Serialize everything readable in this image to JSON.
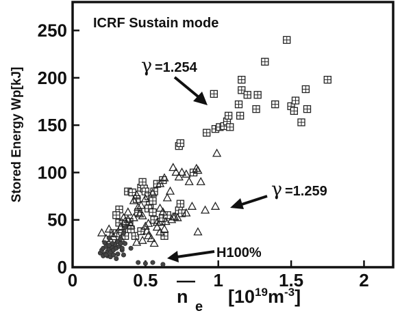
{
  "chart_data": {
    "type": "scatter",
    "title": "ICRF Sustain mode",
    "xlabel_main": "n",
    "xlabel_sub": "e",
    "xlabel_units": "[10",
    "xlabel_units_exp1": "19",
    "xlabel_units_mid": "m",
    "xlabel_units_exp2": "-3",
    "xlabel_units_end": "]",
    "ylabel": "Stored Energy  Wp[kJ]",
    "xlim": [
      0,
      2.2
    ],
    "ylim": [
      0,
      280
    ],
    "x_ticks": [
      0,
      0.5,
      1,
      1.5,
      2
    ],
    "x_tick_labels": [
      "0",
      "0.5",
      "1",
      "1.5",
      "2"
    ],
    "y_ticks": [
      0,
      50,
      100,
      150,
      200,
      250
    ],
    "y_tick_labels": [
      "0",
      "50",
      "100",
      "150",
      "200",
      "250"
    ],
    "annotations": {
      "gamma1_symbol": "γ",
      "gamma1_value": "=1.254",
      "gamma2_symbol": "γ",
      "gamma2_value": "=1.259",
      "h100": "H100%"
    },
    "series": [
      {
        "marker": "boxed-plus",
        "points": [
          [
            0.38,
            80
          ],
          [
            0.41,
            79
          ],
          [
            0.44,
            72
          ],
          [
            0.47,
            84
          ],
          [
            0.48,
            90
          ],
          [
            0.49,
            83
          ],
          [
            0.5,
            80
          ],
          [
            0.52,
            75
          ],
          [
            0.53,
            66
          ],
          [
            0.55,
            70
          ],
          [
            0.56,
            80
          ],
          [
            0.58,
            88
          ],
          [
            0.62,
            92
          ],
          [
            0.73,
            128
          ],
          [
            0.74,
            131
          ],
          [
            0.83,
            100
          ],
          [
            0.92,
            142
          ],
          [
            0.97,
            183
          ],
          [
            0.98,
            146
          ],
          [
            1.01,
            148
          ],
          [
            1.04,
            149
          ],
          [
            1.06,
            154
          ],
          [
            1.07,
            160
          ],
          [
            1.08,
            148
          ],
          [
            1.14,
            172
          ],
          [
            1.15,
            160
          ],
          [
            1.16,
            187
          ],
          [
            1.16,
            198
          ],
          [
            1.2,
            182
          ],
          [
            1.26,
            167
          ],
          [
            1.27,
            182
          ],
          [
            1.32,
            217
          ],
          [
            1.39,
            172
          ],
          [
            1.47,
            240
          ],
          [
            1.5,
            170
          ],
          [
            1.52,
            165
          ],
          [
            1.53,
            176
          ],
          [
            1.57,
            153
          ],
          [
            1.6,
            188
          ],
          [
            1.61,
            167
          ],
          [
            1.75,
            198
          ],
          [
            0.61,
            48
          ],
          [
            0.62,
            52
          ],
          [
            0.65,
            55
          ],
          [
            0.73,
            60
          ],
          [
            0.74,
            67
          ],
          [
            0.75,
            57
          ],
          [
            0.43,
            33
          ],
          [
            0.47,
            38
          ],
          [
            0.4,
            40
          ],
          [
            0.36,
            33
          ],
          [
            0.34,
            40
          ],
          [
            0.28,
            36
          ],
          [
            0.32,
            47
          ],
          [
            0.39,
            48
          ],
          [
            0.45,
            58
          ],
          [
            0.52,
            62
          ],
          [
            0.55,
            58
          ],
          [
            0.56,
            50
          ],
          [
            0.63,
            33
          ],
          [
            0.32,
            61
          ],
          [
            0.3,
            55
          ]
        ]
      },
      {
        "marker": "triangle",
        "points": [
          [
            0.2,
            36
          ],
          [
            0.23,
            30
          ],
          [
            0.26,
            28
          ],
          [
            0.3,
            35
          ],
          [
            0.33,
            42
          ],
          [
            0.36,
            48
          ],
          [
            0.38,
            50
          ],
          [
            0.4,
            44
          ],
          [
            0.42,
            52
          ],
          [
            0.45,
            63
          ],
          [
            0.46,
            56
          ],
          [
            0.48,
            54
          ],
          [
            0.5,
            43
          ],
          [
            0.51,
            38
          ],
          [
            0.52,
            33
          ],
          [
            0.54,
            30
          ],
          [
            0.56,
            25
          ],
          [
            0.58,
            47
          ],
          [
            0.6,
            62
          ],
          [
            0.62,
            58
          ],
          [
            0.64,
            48
          ],
          [
            0.65,
            73
          ],
          [
            0.67,
            80
          ],
          [
            0.68,
            50
          ],
          [
            0.7,
            53
          ],
          [
            0.72,
            52
          ],
          [
            0.75,
            100
          ],
          [
            0.78,
            98
          ],
          [
            0.8,
            90
          ],
          [
            0.82,
            64
          ],
          [
            0.85,
            104
          ],
          [
            0.86,
            102
          ],
          [
            0.88,
            90
          ],
          [
            0.91,
            60
          ],
          [
            0.69,
            105
          ],
          [
            0.71,
            100
          ],
          [
            0.73,
            95
          ],
          [
            0.63,
            94
          ],
          [
            0.6,
            88
          ],
          [
            0.55,
            78
          ],
          [
            0.5,
            72
          ],
          [
            0.47,
            65
          ],
          [
            0.44,
            76
          ],
          [
            0.42,
            70
          ],
          [
            0.38,
            58
          ],
          [
            0.35,
            52
          ],
          [
            0.33,
            30
          ],
          [
            0.3,
            25
          ],
          [
            0.28,
            32
          ],
          [
            0.25,
            40
          ],
          [
            0.6,
            37
          ],
          [
            0.63,
            40
          ],
          [
            0.69,
            53
          ],
          [
            0.78,
            57
          ],
          [
            0.86,
            37
          ],
          [
            0.99,
            120
          ],
          [
            0.98,
            64
          ],
          [
            0.44,
            26
          ],
          [
            0.48,
            28
          ],
          [
            0.52,
            46
          ],
          [
            0.58,
            42
          ]
        ]
      },
      {
        "marker": "filled-circle",
        "points": [
          [
            0.19,
            15
          ],
          [
            0.2,
            18
          ],
          [
            0.21,
            20
          ],
          [
            0.22,
            14
          ],
          [
            0.23,
            22
          ],
          [
            0.24,
            17
          ],
          [
            0.25,
            19
          ],
          [
            0.26,
            16
          ],
          [
            0.27,
            21
          ],
          [
            0.28,
            18
          ],
          [
            0.29,
            24
          ],
          [
            0.3,
            20
          ],
          [
            0.31,
            27
          ],
          [
            0.32,
            22
          ],
          [
            0.33,
            30
          ],
          [
            0.34,
            18
          ],
          [
            0.35,
            36
          ],
          [
            0.36,
            25
          ],
          [
            0.22,
            26
          ],
          [
            0.24,
            12
          ],
          [
            0.26,
            11
          ],
          [
            0.28,
            13
          ],
          [
            0.31,
            14
          ],
          [
            0.3,
            9
          ],
          [
            0.27,
            25
          ],
          [
            0.25,
            23
          ],
          [
            0.21,
            12
          ],
          [
            0.23,
            13
          ],
          [
            0.33,
            25
          ],
          [
            0.34,
            20
          ],
          [
            0.36,
            42
          ],
          [
            0.4,
            20
          ],
          [
            0.45,
            5
          ],
          [
            0.5,
            4
          ],
          [
            0.55,
            5
          ],
          [
            0.62,
            3
          ],
          [
            0.25,
            31
          ],
          [
            0.35,
            13
          ]
        ]
      }
    ]
  }
}
